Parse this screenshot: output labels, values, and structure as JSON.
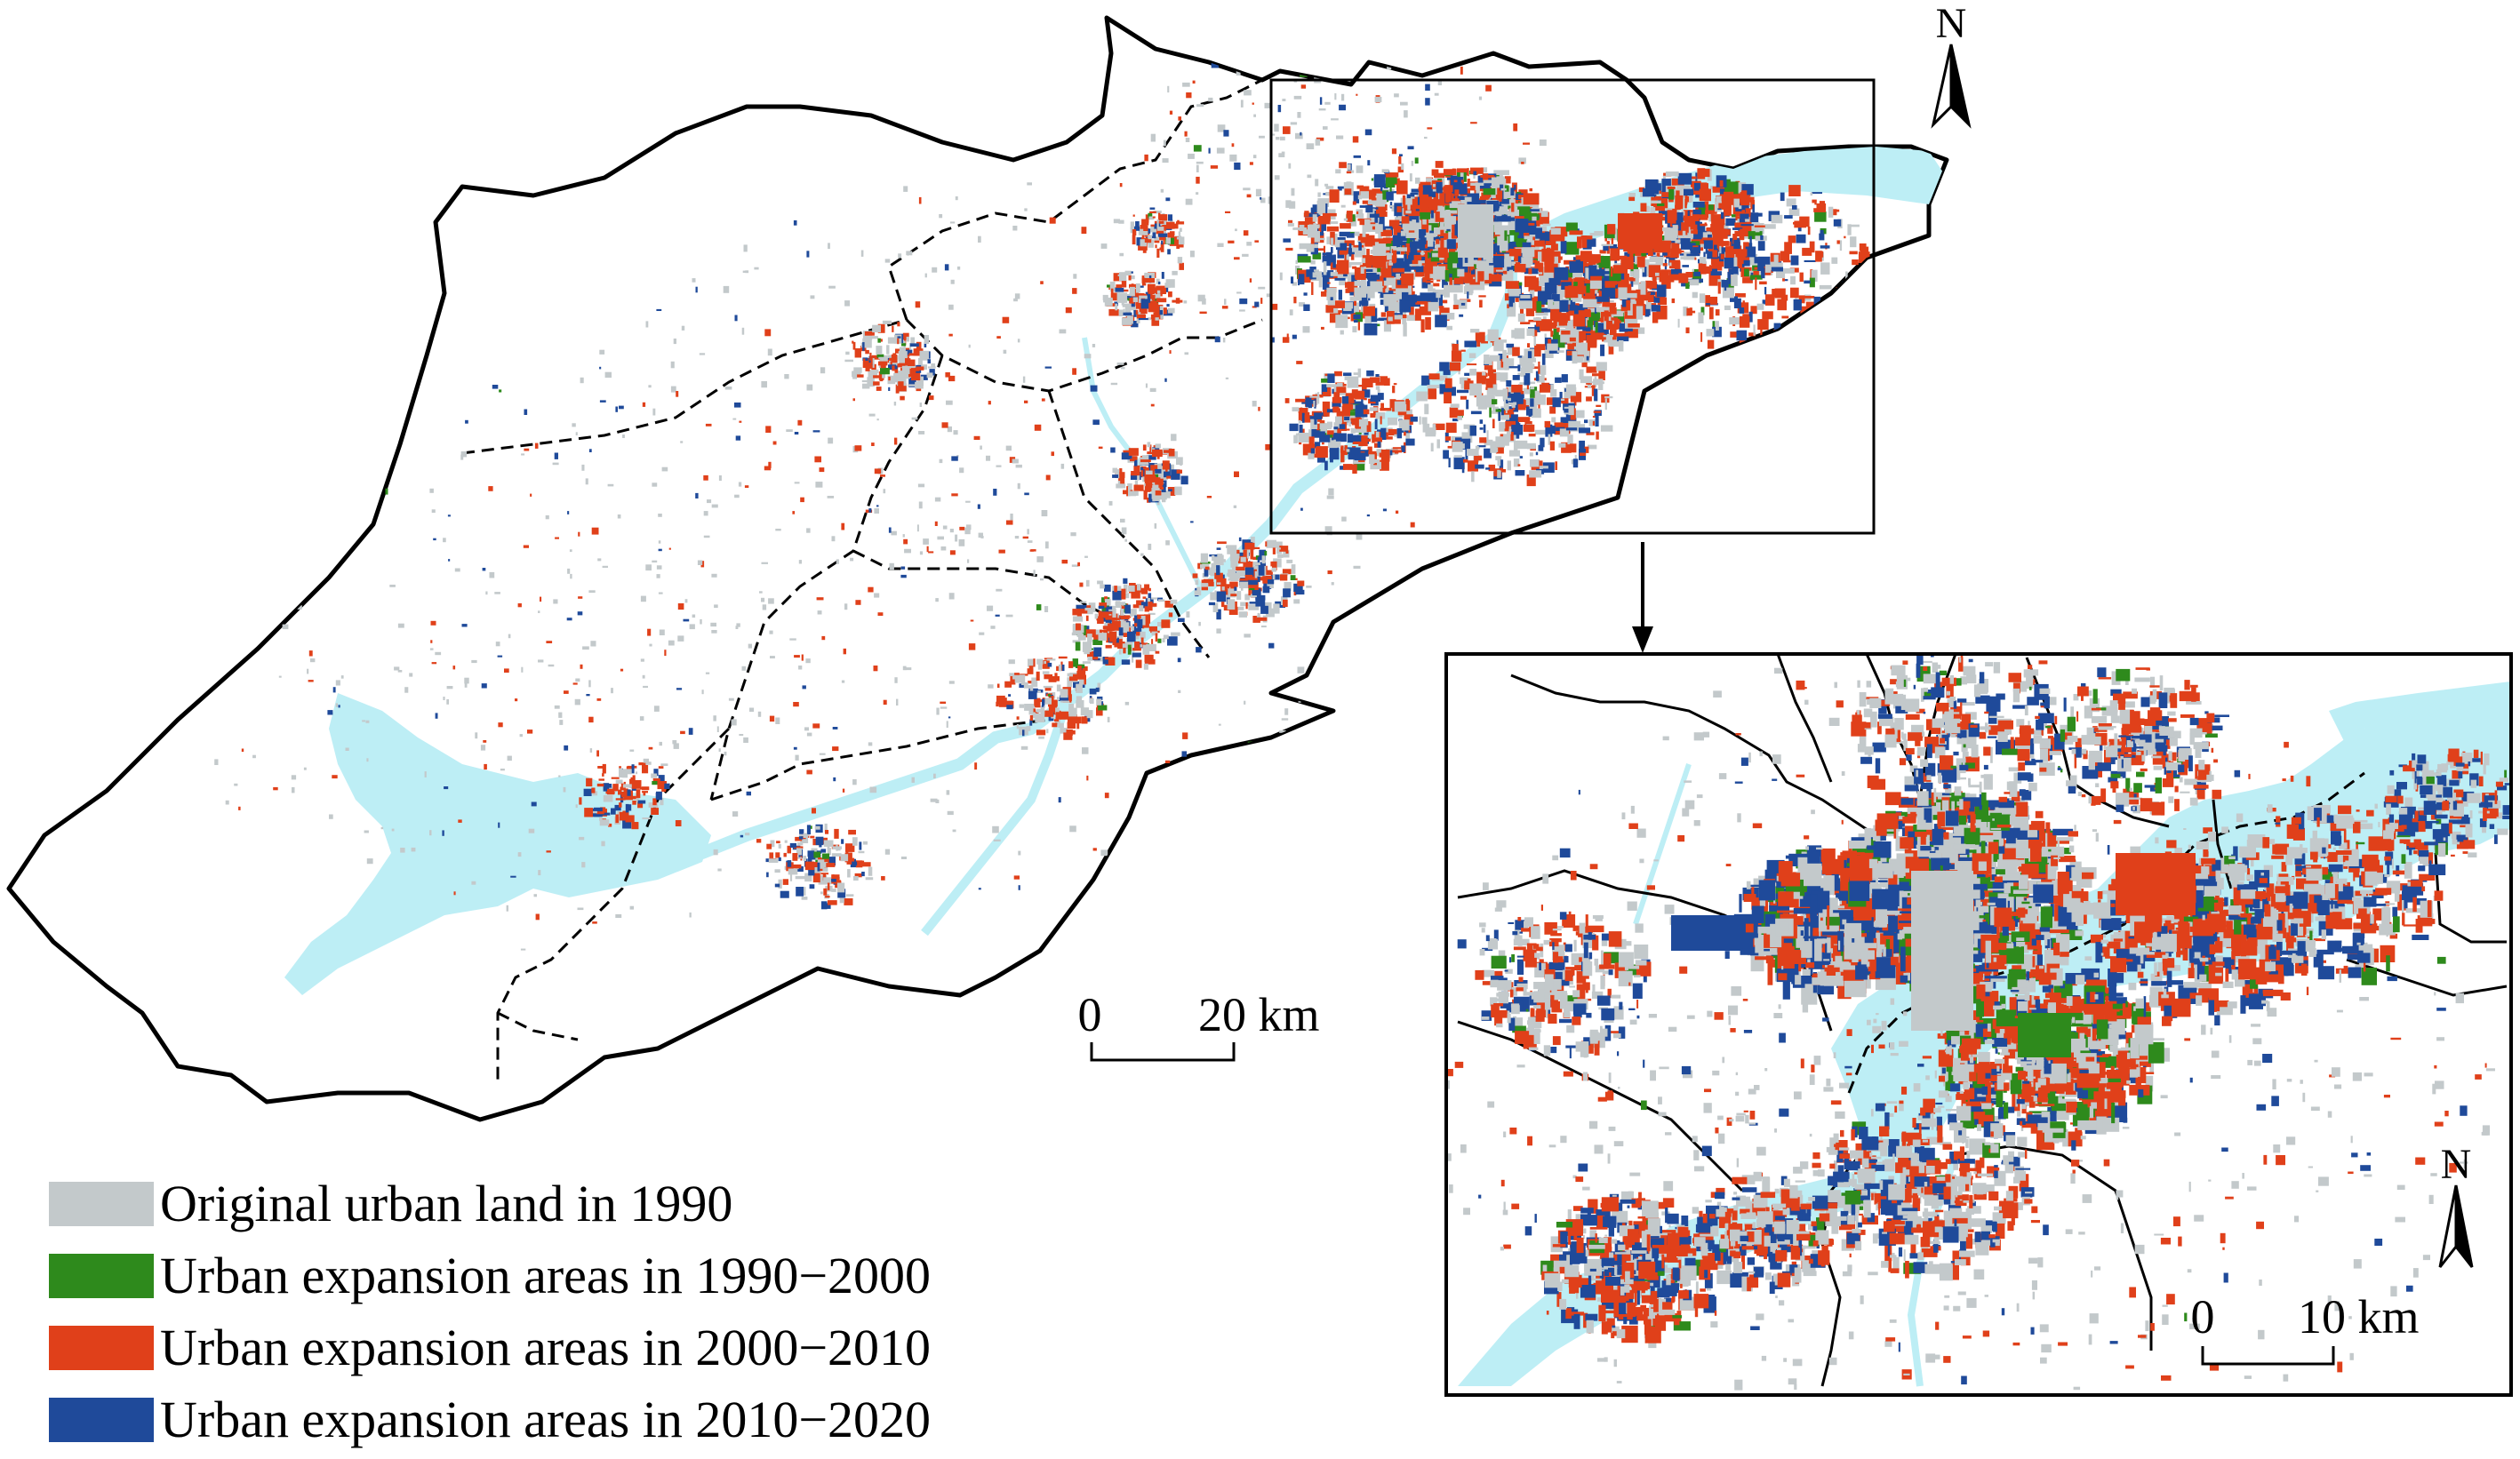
{
  "colors": {
    "original_urban_1990": "#c3c9cb",
    "expansion_1990_2000": "#2e8a1c",
    "expansion_2000_2010": "#e0401a",
    "expansion_2010_2020": "#1f4a9a",
    "water": "#bdeef5",
    "boundary": "#000000",
    "background": "#ffffff"
  },
  "north_arrow": {
    "label": "N"
  },
  "main_map": {
    "scale_bar": {
      "start_label": "0",
      "end_label": "20 km"
    }
  },
  "inset_map": {
    "north_arrow_label": "N",
    "scale_bar": {
      "start_label": "0",
      "end_label": "10 km"
    }
  },
  "legend": {
    "items": [
      {
        "label": "Original urban land in 1990",
        "color": "#c3c9cb"
      },
      {
        "label": "Urban expansion areas in 1990−2000",
        "color": "#2e8a1c"
      },
      {
        "label": "Urban expansion areas in 2000−2010",
        "color": "#e0401a"
      },
      {
        "label": "Urban expansion areas in 2010−2020",
        "color": "#1f4a9a"
      }
    ]
  }
}
